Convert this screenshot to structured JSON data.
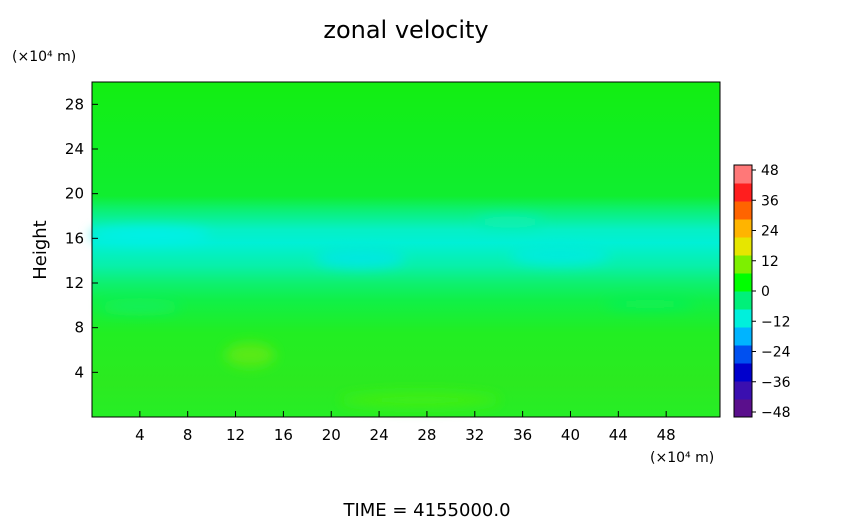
{
  "chart_data": {
    "type": "heatmap",
    "title": "zonal velocity",
    "xlabel": "",
    "ylabel": "Height",
    "x_unit": "(×10⁴ m)",
    "y_unit": "(×10⁴ m)",
    "footer": "TIME = 4155000.0",
    "xlim": [
      0,
      52.5
    ],
    "ylim": [
      0,
      30
    ],
    "x_ticks": [
      4,
      8,
      12,
      16,
      20,
      24,
      28,
      32,
      36,
      40,
      44,
      48
    ],
    "y_ticks": [
      4,
      8,
      12,
      16,
      20,
      24,
      28
    ],
    "colorbar": {
      "ticks": [
        48,
        36,
        24,
        12,
        0,
        -12,
        -24,
        -36,
        -48
      ],
      "tick_labels": [
        "48",
        "36",
        "24",
        "12",
        "0",
        "−12",
        "−24",
        "−36",
        "−48"
      ],
      "min": -48,
      "max": 48,
      "colors": [
        "#5a0f8c",
        "#3a0fb0",
        "#0000cc",
        "#0050f0",
        "#00b4ff",
        "#00f0dc",
        "#00f07a",
        "#00ff00",
        "#7df000",
        "#e6e600",
        "#ffb400",
        "#ff6400",
        "#ff1e1e",
        "#ff7878"
      ]
    },
    "grid": false,
    "bands": [
      {
        "y": [
          0,
          3
        ],
        "value": 2
      },
      {
        "y": [
          3,
          8
        ],
        "value": 1
      },
      {
        "y": [
          8,
          11
        ],
        "value": -1
      },
      {
        "y": [
          11,
          12.5
        ],
        "value": -4
      },
      {
        "y": [
          12.5,
          14.5
        ],
        "value": -8
      },
      {
        "y": [
          14.5,
          17.5
        ],
        "value": -12
      },
      {
        "y": [
          17.5,
          19.5
        ],
        "value": -5
      },
      {
        "y": [
          19.5,
          22
        ],
        "value": -1
      },
      {
        "y": [
          22,
          30
        ],
        "value": 0
      }
    ]
  }
}
